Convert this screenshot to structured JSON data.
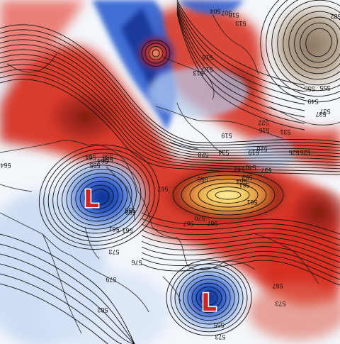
{
  "map": {
    "low_centers": [
      {
        "label": "L",
        "color": "#d22121"
      },
      {
        "label": "L",
        "color": "#d22121"
      }
    ],
    "contour_labels": [
      "564",
      "582",
      "564",
      "558",
      "555",
      "555",
      "561",
      "573",
      "576",
      "579",
      "582",
      "564",
      "558",
      "552",
      "561",
      "567",
      "567",
      "570",
      "540",
      "537",
      "534",
      "528",
      "522",
      "516",
      "513",
      "510",
      "516",
      "519",
      "525",
      "537",
      "561",
      "564",
      "555",
      "555",
      "549",
      "537",
      "504",
      "507",
      "510",
      "513",
      "519",
      "525",
      "528",
      "531",
      "543",
      "573",
      "567",
      "561",
      "555",
      "567",
      "573",
      "555",
      "552"
    ],
    "palette": {
      "warm_deep": "#8e1d12",
      "warm": "#d62a1a",
      "warm_light": "#f4a18c",
      "peak_yellow": "#f6d36a",
      "cool_deep": "#0b2b8a",
      "cool": "#2f5fd1",
      "cool_light": "#a8c4ee",
      "neutral": "#f3f6fb",
      "brown": "#a08c78",
      "contour": "#111111"
    }
  }
}
